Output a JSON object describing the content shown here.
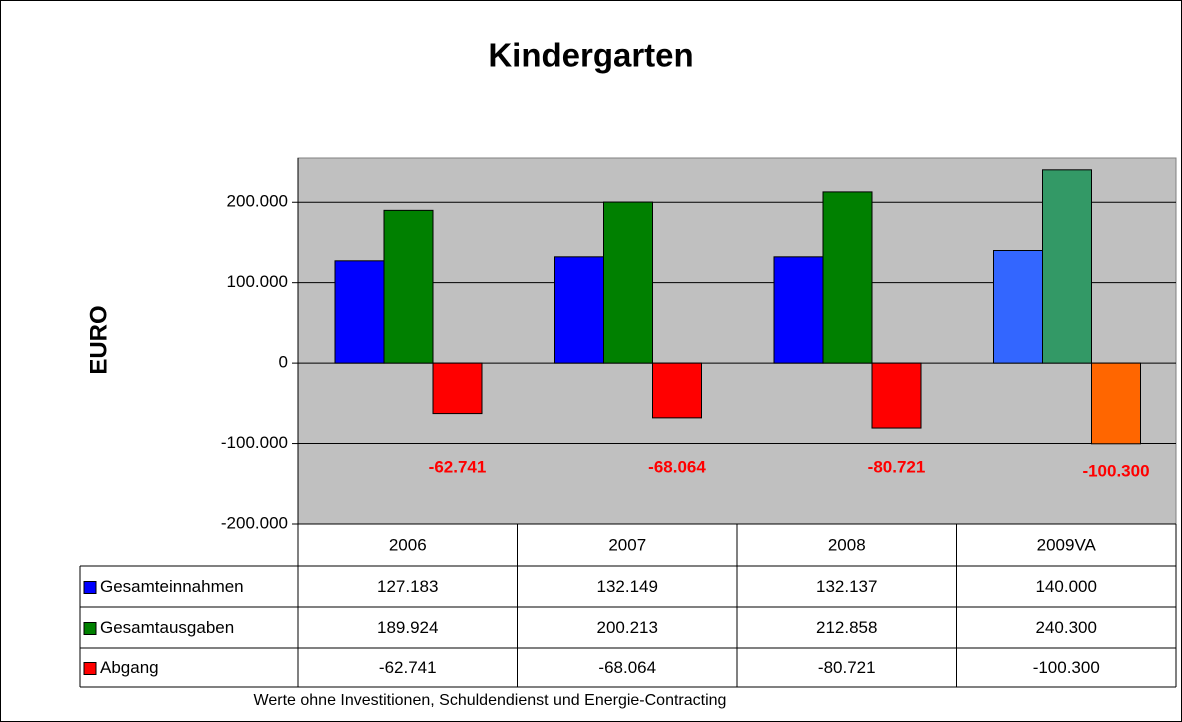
{
  "chart_data": {
    "type": "bar",
    "title": "Kindergarten",
    "y_label": "EURO",
    "categories": [
      "2006",
      "2007",
      "2008",
      "2009VA"
    ],
    "series": [
      {
        "name": "Gesamteinnahmen",
        "color": "#0000ff",
        "point_colors": [
          "#0000ff",
          "#0000ff",
          "#0000ff",
          "#3366ff"
        ],
        "values": [
          127183,
          132149,
          132137,
          140000
        ],
        "value_labels": [
          "127.183",
          "132.149",
          "132.137",
          "140.000"
        ]
      },
      {
        "name": "Gesamtausgaben",
        "color": "#008000",
        "point_colors": [
          "#008000",
          "#008000",
          "#008000",
          "#339966"
        ],
        "values": [
          189924,
          200213,
          212858,
          240300
        ],
        "value_labels": [
          "189.924",
          "200.213",
          "212.858",
          "240.300"
        ]
      },
      {
        "name": "Abgang",
        "color": "#ff0000",
        "point_colors": [
          "#ff0000",
          "#ff0000",
          "#ff0000",
          "#ff6600"
        ],
        "values": [
          -62741,
          -68064,
          -80721,
          -100300
        ],
        "value_labels": [
          "-62.741",
          "-68.064",
          "-80.721",
          "-100.300"
        ],
        "show_data_labels": true,
        "data_label_color": "#ff0000"
      }
    ],
    "ylim": [
      -200000,
      255000
    ],
    "yticks": [
      {
        "value": -200000,
        "label": "-200.000"
      },
      {
        "value": -100000,
        "label": "-100.000"
      },
      0,
      {
        "value": 100000,
        "label": "100.000"
      },
      {
        "value": 200000,
        "label": "200.000"
      }
    ],
    "grid": true,
    "plot_background": "#c0c0c0",
    "footnote": "Werte ohne Investitionen, Schuldendienst und Energie-Contracting"
  }
}
